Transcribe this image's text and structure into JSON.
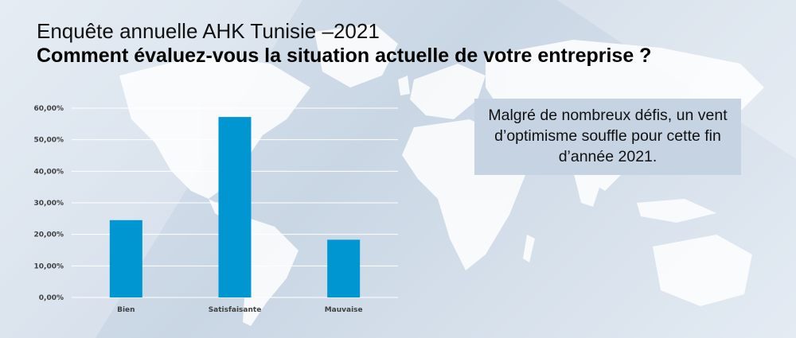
{
  "header": {
    "title": "Enquête annuelle AHK Tunisie –2021",
    "subtitle": "Comment évaluez-vous la situation actuelle de votre entreprise ?"
  },
  "callout": {
    "text": "Malgré de nombreux défis, un vent d’optimisme souffle pour cette fin d’année 2021."
  },
  "colors": {
    "bar": "#0096d1",
    "gridline": "#ffffff",
    "tick_text": "#404040"
  },
  "chart_data": {
    "type": "bar",
    "categories": [
      "Bien",
      "Satisfaisante",
      "Mauvaise"
    ],
    "values": [
      24.5,
      57.2,
      18.3
    ],
    "title": "",
    "xlabel": "",
    "ylabel": "",
    "ylim": [
      0,
      60
    ],
    "yticks": [
      0,
      10,
      20,
      30,
      40,
      50,
      60
    ],
    "ytick_labels": [
      "0,00%",
      "10,00%",
      "20,00%",
      "30,00%",
      "40,00%",
      "50,00%",
      "60,00%"
    ],
    "grid": true,
    "legend": "none"
  }
}
